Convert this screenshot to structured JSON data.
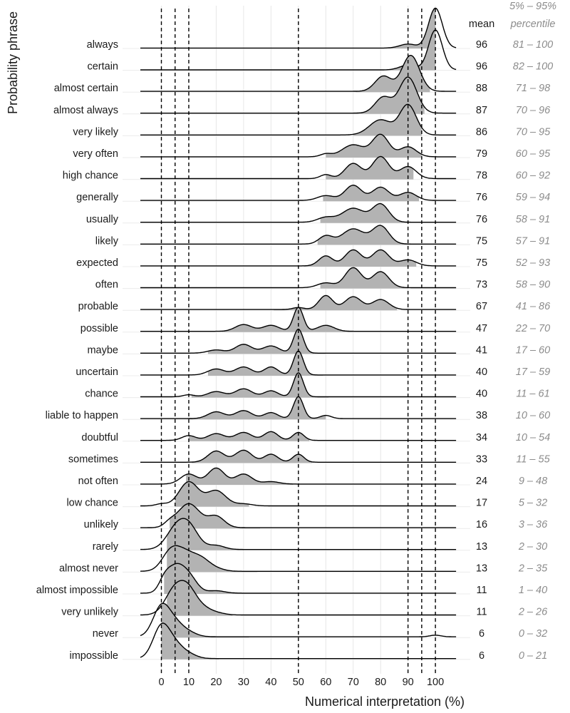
{
  "chart_data": {
    "type": "ridgeline",
    "xlabel": "Numerical interpretation (%)",
    "ylabel": "Probability phrase",
    "xlim": [
      -7,
      107
    ],
    "x_ticks": [
      0,
      10,
      20,
      30,
      40,
      50,
      60,
      70,
      80,
      90,
      100
    ],
    "x_tick_labels": [
      "0",
      "10",
      "20",
      "30",
      "40",
      "50",
      "60",
      "70",
      "80",
      "90",
      "100"
    ],
    "grid": "vertical",
    "fill_color": "#b3b3b3",
    "line_color": "#000000",
    "mean_header": "mean",
    "percentile_header": [
      "5% – 95%",
      "percentile"
    ],
    "reference_lines": [
      {
        "x": 0,
        "style": "dashed"
      },
      {
        "x": 5,
        "style": "dashed"
      },
      {
        "x": 10,
        "style": "dashed"
      },
      {
        "x": 50,
        "style": "dashed"
      },
      {
        "x": 90,
        "style": "dashed"
      },
      {
        "x": 95,
        "style": "dashed"
      },
      {
        "x": 100,
        "style": "dashed"
      }
    ],
    "phrases": [
      {
        "label": "always",
        "mean": "96",
        "range": "81 – 100",
        "p5": 81,
        "p95": 100,
        "peaks": [
          [
            100,
            1.0,
            2.5
          ],
          [
            90,
            0.1,
            3
          ]
        ],
        "base": 0.01
      },
      {
        "label": "certain",
        "mean": "96",
        "range": "82 – 100",
        "p5": 82,
        "p95": 100,
        "peaks": [
          [
            100,
            1.0,
            2.5
          ],
          [
            90,
            0.12,
            3
          ]
        ],
        "base": 0.01
      },
      {
        "label": "almost certain",
        "mean": "88",
        "range": "71 – 98",
        "p5": 71,
        "p95": 98,
        "peaks": [
          [
            91,
            0.9,
            3.2
          ],
          [
            81,
            0.38,
            3
          ]
        ],
        "base": 0.02
      },
      {
        "label": "almost always",
        "mean": "87",
        "range": "70 – 96",
        "p5": 70,
        "p95": 96,
        "peaks": [
          [
            90,
            0.9,
            3.2
          ],
          [
            81,
            0.4,
            3
          ]
        ],
        "base": 0.02
      },
      {
        "label": "very likely",
        "mean": "86",
        "range": "70 – 95",
        "p5": 70,
        "p95": 95,
        "peaks": [
          [
            90,
            0.75,
            3
          ],
          [
            80,
            0.38,
            4
          ]
        ],
        "base": 0.02
      },
      {
        "label": "very often",
        "mean": "79",
        "range": "60 – 95",
        "p5": 60,
        "p95": 95,
        "peaks": [
          [
            80,
            0.55,
            3
          ],
          [
            70,
            0.3,
            4
          ],
          [
            90,
            0.25,
            3
          ],
          [
            60,
            0.07,
            2
          ]
        ],
        "base": 0.02
      },
      {
        "label": "high chance",
        "mean": "78",
        "range": "60 – 92",
        "p5": 60,
        "p95": 92,
        "peaks": [
          [
            80,
            0.55,
            3
          ],
          [
            70,
            0.38,
            3
          ],
          [
            90,
            0.3,
            3
          ],
          [
            60,
            0.1,
            2
          ]
        ],
        "base": 0.02
      },
      {
        "label": "generally",
        "mean": "76",
        "range": "59 – 94",
        "p5": 59,
        "p95": 94,
        "peaks": [
          [
            70,
            0.38,
            3
          ],
          [
            80,
            0.33,
            3
          ],
          [
            90,
            0.2,
            3
          ],
          [
            60,
            0.12,
            3
          ]
        ],
        "base": 0.02
      },
      {
        "label": "usually",
        "mean": "76",
        "range": "58 – 91",
        "p5": 58,
        "p95": 91,
        "peaks": [
          [
            80,
            0.45,
            3
          ],
          [
            70,
            0.35,
            4
          ],
          [
            60,
            0.12,
            3
          ]
        ],
        "base": 0.02
      },
      {
        "label": "likely",
        "mean": "75",
        "range": "57 – 91",
        "p5": 57,
        "p95": 91,
        "peaks": [
          [
            80,
            0.45,
            3
          ],
          [
            70,
            0.38,
            4
          ],
          [
            60,
            0.2,
            2.5
          ]
        ],
        "base": 0.02
      },
      {
        "label": "expected",
        "mean": "75",
        "range": "52 – 93",
        "p5": 52,
        "p95": 93,
        "peaks": [
          [
            80,
            0.4,
            3
          ],
          [
            70,
            0.4,
            3
          ],
          [
            60,
            0.25,
            2.5
          ],
          [
            90,
            0.15,
            3
          ]
        ],
        "base": 0.02
      },
      {
        "label": "often",
        "mean": "73",
        "range": "58 – 90",
        "p5": 58,
        "p95": 90,
        "peaks": [
          [
            70,
            0.5,
            3
          ],
          [
            80,
            0.4,
            3
          ],
          [
            60,
            0.12,
            3
          ]
        ],
        "base": 0.02
      },
      {
        "label": "probable",
        "mean": "67",
        "range": "41 – 86",
        "p5": 41,
        "p95": 86,
        "peaks": [
          [
            60,
            0.35,
            2.5
          ],
          [
            70,
            0.32,
            3
          ],
          [
            80,
            0.25,
            3
          ],
          [
            50,
            0.05,
            2
          ]
        ],
        "base": 0.02
      },
      {
        "label": "possible",
        "mean": "47",
        "range": "22 – 70",
        "p5": 22,
        "p95": 70,
        "peaks": [
          [
            50,
            0.6,
            1.8
          ],
          [
            30,
            0.17,
            3
          ],
          [
            40,
            0.15,
            3
          ],
          [
            60,
            0.15,
            3
          ]
        ],
        "base": 0.02
      },
      {
        "label": "maybe",
        "mean": "41",
        "range": "17 – 60",
        "p5": 17,
        "p95": 60,
        "peaks": [
          [
            50,
            0.6,
            1.8
          ],
          [
            30,
            0.22,
            3
          ],
          [
            40,
            0.18,
            3
          ],
          [
            20,
            0.08,
            3
          ]
        ],
        "base": 0.02
      },
      {
        "label": "uncertain",
        "mean": "40",
        "range": "17 – 59",
        "p5": 17,
        "p95": 59,
        "peaks": [
          [
            50,
            0.6,
            1.8
          ],
          [
            40,
            0.2,
            2.5
          ],
          [
            30,
            0.2,
            3
          ],
          [
            20,
            0.15,
            3
          ]
        ],
        "base": 0.02
      },
      {
        "label": "chance",
        "mean": "40",
        "range": "11 – 61",
        "p5": 11,
        "p95": 61,
        "peaks": [
          [
            50,
            0.6,
            1.8
          ],
          [
            30,
            0.2,
            3
          ],
          [
            40,
            0.15,
            2.5
          ],
          [
            20,
            0.13,
            3
          ],
          [
            10,
            0.05,
            2
          ]
        ],
        "base": 0.02
      },
      {
        "label": "liable to happen",
        "mean": "38",
        "range": "10 – 60",
        "p5": 10,
        "p95": 60,
        "peaks": [
          [
            50,
            0.55,
            1.8
          ],
          [
            30,
            0.2,
            3
          ],
          [
            20,
            0.17,
            3
          ],
          [
            40,
            0.15,
            2.5
          ],
          [
            60,
            0.08,
            2
          ]
        ],
        "base": 0.02
      },
      {
        "label": "doubtful",
        "mean": "34",
        "range": "10 – 54",
        "p5": 10,
        "p95": 54,
        "peaks": [
          [
            40,
            0.22,
            2.5
          ],
          [
            30,
            0.2,
            3
          ],
          [
            50,
            0.2,
            2
          ],
          [
            20,
            0.17,
            3
          ],
          [
            10,
            0.12,
            2.5
          ]
        ],
        "base": 0.02
      },
      {
        "label": "sometimes",
        "mean": "33",
        "range": "11 – 55",
        "p5": 11,
        "p95": 55,
        "peaks": [
          [
            30,
            0.3,
            3
          ],
          [
            20,
            0.28,
            3
          ],
          [
            40,
            0.2,
            2.5
          ],
          [
            50,
            0.2,
            2
          ]
        ],
        "base": 0.02
      },
      {
        "label": "not often",
        "mean": "24",
        "range": "9 – 48",
        "p5": 9,
        "p95": 48,
        "peaks": [
          [
            20,
            0.4,
            3
          ],
          [
            10,
            0.25,
            3
          ],
          [
            30,
            0.25,
            3
          ],
          [
            40,
            0.06,
            3
          ]
        ],
        "base": 0.02
      },
      {
        "label": "low chance",
        "mean": "17",
        "range": "5 – 32",
        "p5": 5,
        "p95": 32,
        "peaks": [
          [
            10,
            0.6,
            3.5
          ],
          [
            20,
            0.38,
            3.5
          ],
          [
            0,
            0.05,
            2
          ],
          [
            30,
            0.05,
            3
          ]
        ],
        "base": 0.02
      },
      {
        "label": "unlikely",
        "mean": "16",
        "range": "3 – 36",
        "p5": 3,
        "p95": 36,
        "peaks": [
          [
            10,
            0.6,
            4
          ],
          [
            20,
            0.28,
            3
          ],
          [
            3,
            0.1,
            2
          ]
        ],
        "base": 0.02
      },
      {
        "label": "rarely",
        "mean": "13",
        "range": "2 – 30",
        "p5": 2,
        "p95": 30,
        "peaks": [
          [
            10,
            0.55,
            3.5
          ],
          [
            5,
            0.45,
            3.5
          ],
          [
            20,
            0.1,
            3
          ]
        ],
        "base": 0.02
      },
      {
        "label": "almost never",
        "mean": "13",
        "range": "2 – 35",
        "p5": 2,
        "p95": 35,
        "peaks": [
          [
            8,
            0.5,
            4.5
          ],
          [
            3,
            0.3,
            3
          ],
          [
            15,
            0.2,
            3
          ],
          [
            20,
            0.06,
            3
          ]
        ],
        "base": 0.02
      },
      {
        "label": "almost impossible",
        "mean": "11",
        "range": "1 – 40",
        "p5": 1,
        "p95": 40,
        "peaks": [
          [
            5,
            0.6,
            3
          ],
          [
            10,
            0.4,
            3
          ],
          [
            1,
            0.25,
            2
          ],
          [
            20,
            0.06,
            3
          ]
        ],
        "base": 0.02
      },
      {
        "label": "very unlikely",
        "mean": "11",
        "range": "2 – 26",
        "p5": 2,
        "p95": 26,
        "peaks": [
          [
            5,
            0.65,
            3.5
          ],
          [
            10,
            0.5,
            3
          ],
          [
            15,
            0.15,
            3
          ],
          [
            20,
            0.05,
            3
          ]
        ],
        "base": 0.02
      },
      {
        "label": "never",
        "mean": "6",
        "range": "0 – 32",
        "p5": 0,
        "p95": 32,
        "peaks": [
          [
            0,
            0.75,
            3
          ],
          [
            5,
            0.3,
            3
          ],
          [
            10,
            0.1,
            3
          ],
          [
            100,
            0.04,
            2
          ]
        ],
        "base": 0.02
      },
      {
        "label": "impossible",
        "mean": "6",
        "range": "0 – 21",
        "p5": 0,
        "p95": 21,
        "peaks": [
          [
            0,
            0.8,
            3
          ],
          [
            5,
            0.3,
            3
          ],
          [
            10,
            0.1,
            3
          ]
        ],
        "base": 0.02
      }
    ]
  }
}
